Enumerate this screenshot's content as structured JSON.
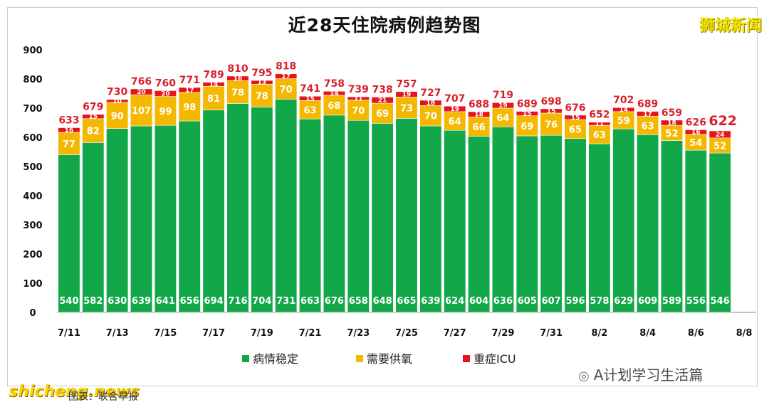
{
  "title": "近28天住院病例趋势图",
  "brand": "狮城新闻",
  "watermark": "A计划学习生活篇",
  "site": "shicheng.news",
  "caption": "图表：联合早报",
  "colors": {
    "stable": "#12a84a",
    "oxygen": "#f5b800",
    "icu": "#e8141c",
    "total_label": "#d81f2a"
  },
  "chart_data": {
    "type": "bar",
    "stacked": true,
    "title": "近28天住院病例趋势图",
    "ylim": [
      0,
      900
    ],
    "yticks": [
      0,
      100,
      200,
      300,
      400,
      500,
      600,
      700,
      800,
      900
    ],
    "xtick_labels": [
      "7/11",
      "7/13",
      "7/15",
      "7/17",
      "7/19",
      "7/21",
      "7/23",
      "7/25",
      "7/27",
      "7/29",
      "7/31",
      "8/2",
      "8/4",
      "8/6",
      "8/8"
    ],
    "legend_position": "bottom",
    "series": [
      {
        "name": "病情稳定",
        "values": [
          540,
          582,
          630,
          639,
          641,
          656,
          694,
          716,
          704,
          731,
          663,
          676,
          658,
          648,
          665,
          639,
          624,
          604,
          636,
          605,
          607,
          596,
          578,
          629,
          609,
          589,
          556,
          546
        ]
      },
      {
        "name": "需要供氧",
        "values": [
          77,
          82,
          90,
          107,
          99,
          98,
          81,
          78,
          78,
          70,
          63,
          68,
          70,
          69,
          73,
          70,
          64,
          66,
          64,
          69,
          76,
          65,
          63,
          59,
          63,
          52,
          54,
          52
        ]
      },
      {
        "name": "重症ICU",
        "values": [
          16,
          15,
          10,
          20,
          20,
          17,
          14,
          16,
          13,
          17,
          15,
          14,
          11,
          21,
          19,
          18,
          19,
          18,
          19,
          15,
          15,
          15,
          11,
          14,
          17,
          18,
          16,
          24
        ]
      }
    ],
    "totals": [
      633,
      679,
      730,
      766,
      760,
      771,
      789,
      810,
      795,
      818,
      741,
      758,
      739,
      738,
      757,
      727,
      707,
      688,
      719,
      689,
      698,
      676,
      652,
      702,
      689,
      659,
      626,
      622
    ]
  }
}
